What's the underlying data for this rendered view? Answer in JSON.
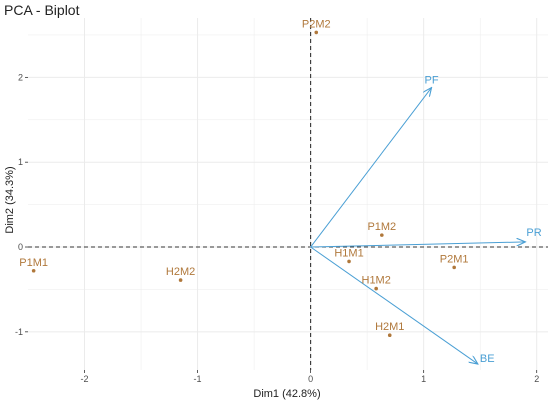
{
  "chart_data": {
    "type": "scatter",
    "title": "PCA - Biplot",
    "xlabel": "Dim1 (42.8%)",
    "ylabel": "Dim2 (34.3%)",
    "xlim": [
      -2.5,
      2.1
    ],
    "ylim": [
      -1.45,
      2.7
    ],
    "xticks": [
      -2,
      -1,
      0,
      1,
      2
    ],
    "yticks": [
      -1,
      0,
      1,
      2
    ],
    "grid": true,
    "reference_lines": "dashed at x=0 and y=0",
    "points": [
      {
        "label": "P2M2",
        "x": 0.05,
        "y": 2.53
      },
      {
        "label": "P1M2",
        "x": 0.63,
        "y": 0.14
      },
      {
        "label": "H1M1",
        "x": 0.34,
        "y": -0.17
      },
      {
        "label": "P2M1",
        "x": 1.27,
        "y": -0.24
      },
      {
        "label": "H1M2",
        "x": 0.58,
        "y": -0.49
      },
      {
        "label": "H2M1",
        "x": 0.7,
        "y": -1.04
      },
      {
        "label": "P1M1",
        "x": -2.45,
        "y": -0.28
      },
      {
        "label": "H2M2",
        "x": -1.15,
        "y": -0.39
      }
    ],
    "variables": [
      {
        "label": "PF",
        "x": 1.07,
        "y": 1.88
      },
      {
        "label": "PR",
        "x": 1.9,
        "y": 0.06
      },
      {
        "label": "BE",
        "x": 1.48,
        "y": -1.38
      }
    ]
  },
  "colors": {
    "points": "#b0783b",
    "arrows": "#4a9fd4",
    "grid": "#ebebeb",
    "reference": "#333333"
  }
}
